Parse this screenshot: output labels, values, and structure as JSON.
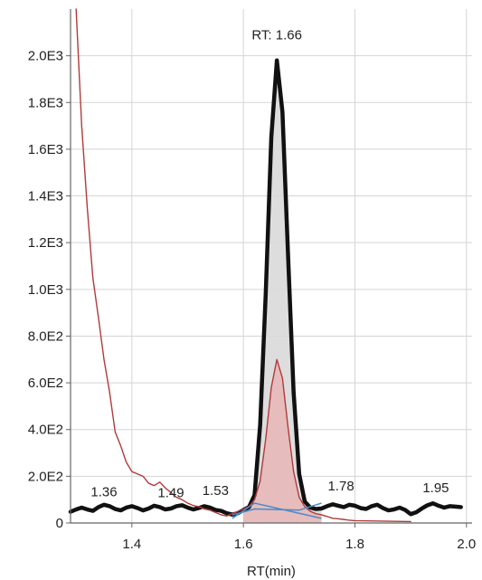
{
  "chart_data": {
    "type": "line",
    "title": "",
    "xlabel": "RT(min)",
    "ylabel": "",
    "xlim": [
      1.29,
      2.01
    ],
    "ylim": [
      0,
      2200
    ],
    "x_ticks": [
      1.4,
      1.6,
      1.8,
      2.0
    ],
    "x_tick_labels": [
      "1.4",
      "1.6",
      "1.8",
      "2.0"
    ],
    "y_ticks": [
      0,
      200,
      400,
      600,
      800,
      1000,
      1200,
      1400,
      1600,
      1800,
      2000
    ],
    "y_tick_labels": [
      "0",
      "2.0E2",
      "4.0E2",
      "6.0E2",
      "8.0E2",
      "1.0E3",
      "1.2E3",
      "1.4E3",
      "1.6E3",
      "1.8E3",
      "2.0E3"
    ],
    "grid": true,
    "series": [
      {
        "color": "#111111",
        "fill_under_peak": "#d9d9d9",
        "points": [
          [
            1.29,
            48
          ],
          [
            1.3,
            58
          ],
          [
            1.31,
            66
          ],
          [
            1.32,
            58
          ],
          [
            1.33,
            52
          ],
          [
            1.34,
            68
          ],
          [
            1.35,
            78
          ],
          [
            1.36,
            72
          ],
          [
            1.37,
            60
          ],
          [
            1.38,
            54
          ],
          [
            1.39,
            66
          ],
          [
            1.4,
            72
          ],
          [
            1.41,
            64
          ],
          [
            1.42,
            54
          ],
          [
            1.43,
            62
          ],
          [
            1.44,
            74
          ],
          [
            1.45,
            68
          ],
          [
            1.46,
            58
          ],
          [
            1.47,
            62
          ],
          [
            1.48,
            72
          ],
          [
            1.49,
            76
          ],
          [
            1.5,
            66
          ],
          [
            1.51,
            58
          ],
          [
            1.52,
            64
          ],
          [
            1.53,
            72
          ],
          [
            1.54,
            66
          ],
          [
            1.55,
            56
          ],
          [
            1.56,
            52
          ],
          [
            1.57,
            42
          ],
          [
            1.58,
            36
          ],
          [
            1.59,
            42
          ],
          [
            1.6,
            56
          ],
          [
            1.61,
            68
          ],
          [
            1.62,
            120
          ],
          [
            1.63,
            420
          ],
          [
            1.64,
            980
          ],
          [
            1.65,
            1650
          ],
          [
            1.66,
            1980
          ],
          [
            1.67,
            1760
          ],
          [
            1.68,
            1150
          ],
          [
            1.69,
            560
          ],
          [
            1.7,
            210
          ],
          [
            1.71,
            92
          ],
          [
            1.72,
            66
          ],
          [
            1.73,
            60
          ],
          [
            1.74,
            62
          ],
          [
            1.75,
            72
          ],
          [
            1.76,
            80
          ],
          [
            1.77,
            74
          ],
          [
            1.78,
            68
          ],
          [
            1.79,
            78
          ],
          [
            1.8,
            74
          ],
          [
            1.81,
            64
          ],
          [
            1.82,
            60
          ],
          [
            1.83,
            72
          ],
          [
            1.84,
            78
          ],
          [
            1.85,
            64
          ],
          [
            1.86,
            54
          ],
          [
            1.87,
            58
          ],
          [
            1.88,
            66
          ],
          [
            1.89,
            56
          ],
          [
            1.9,
            38
          ],
          [
            1.91,
            46
          ],
          [
            1.92,
            62
          ],
          [
            1.93,
            76
          ],
          [
            1.94,
            84
          ],
          [
            1.95,
            74
          ],
          [
            1.96,
            66
          ],
          [
            1.97,
            72
          ],
          [
            1.98,
            70
          ],
          [
            1.99,
            68
          ]
        ]
      },
      {
        "color": "#b23a3a",
        "fill_under_peak": "#e8b0b0",
        "points": [
          [
            1.3,
            2200
          ],
          [
            1.31,
            1700
          ],
          [
            1.32,
            1350
          ],
          [
            1.33,
            1050
          ],
          [
            1.34,
            880
          ],
          [
            1.35,
            700
          ],
          [
            1.36,
            560
          ],
          [
            1.37,
            390
          ],
          [
            1.38,
            330
          ],
          [
            1.39,
            260
          ],
          [
            1.4,
            220
          ],
          [
            1.41,
            210
          ],
          [
            1.42,
            200
          ],
          [
            1.43,
            170
          ],
          [
            1.44,
            160
          ],
          [
            1.45,
            175
          ],
          [
            1.46,
            150
          ],
          [
            1.47,
            130
          ],
          [
            1.48,
            110
          ],
          [
            1.49,
            100
          ],
          [
            1.5,
            85
          ],
          [
            1.51,
            75
          ],
          [
            1.52,
            70
          ],
          [
            1.53,
            60
          ],
          [
            1.54,
            55
          ],
          [
            1.55,
            45
          ],
          [
            1.56,
            35
          ],
          [
            1.57,
            30
          ],
          [
            1.58,
            40
          ],
          [
            1.59,
            50
          ],
          [
            1.6,
            60
          ],
          [
            1.61,
            70
          ],
          [
            1.62,
            100
          ],
          [
            1.63,
            180
          ],
          [
            1.64,
            360
          ],
          [
            1.65,
            580
          ],
          [
            1.66,
            700
          ],
          [
            1.67,
            620
          ],
          [
            1.68,
            410
          ],
          [
            1.69,
            220
          ],
          [
            1.7,
            110
          ],
          [
            1.71,
            70
          ],
          [
            1.72,
            50
          ],
          [
            1.73,
            40
          ],
          [
            1.74,
            35
          ],
          [
            1.75,
            28
          ],
          [
            1.76,
            20
          ],
          [
            1.77,
            18
          ],
          [
            1.78,
            15
          ],
          [
            1.79,
            12
          ],
          [
            1.8,
            10
          ],
          [
            1.85,
            8
          ],
          [
            1.9,
            6
          ]
        ]
      }
    ],
    "baselines": [
      {
        "color": "#4b8ac9",
        "points": [
          [
            1.58,
            20
          ],
          [
            1.62,
            85
          ],
          [
            1.74,
            20
          ]
        ]
      },
      {
        "color": "#4b8ac9",
        "points": [
          [
            1.58,
            35
          ],
          [
            1.62,
            60
          ],
          [
            1.7,
            55
          ],
          [
            1.74,
            85
          ]
        ]
      }
    ],
    "annotations": [
      {
        "text": "1.36",
        "x": 1.35,
        "y": 115
      },
      {
        "text": "1.49",
        "x": 1.47,
        "y": 110
      },
      {
        "text": "1.53",
        "x": 1.55,
        "y": 120
      },
      {
        "text": "1.78",
        "x": 1.775,
        "y": 140
      },
      {
        "text": "1.95",
        "x": 1.945,
        "y": 132
      },
      {
        "text": "RT: 1.66",
        "x": 1.66,
        "y": 2070
      }
    ]
  }
}
